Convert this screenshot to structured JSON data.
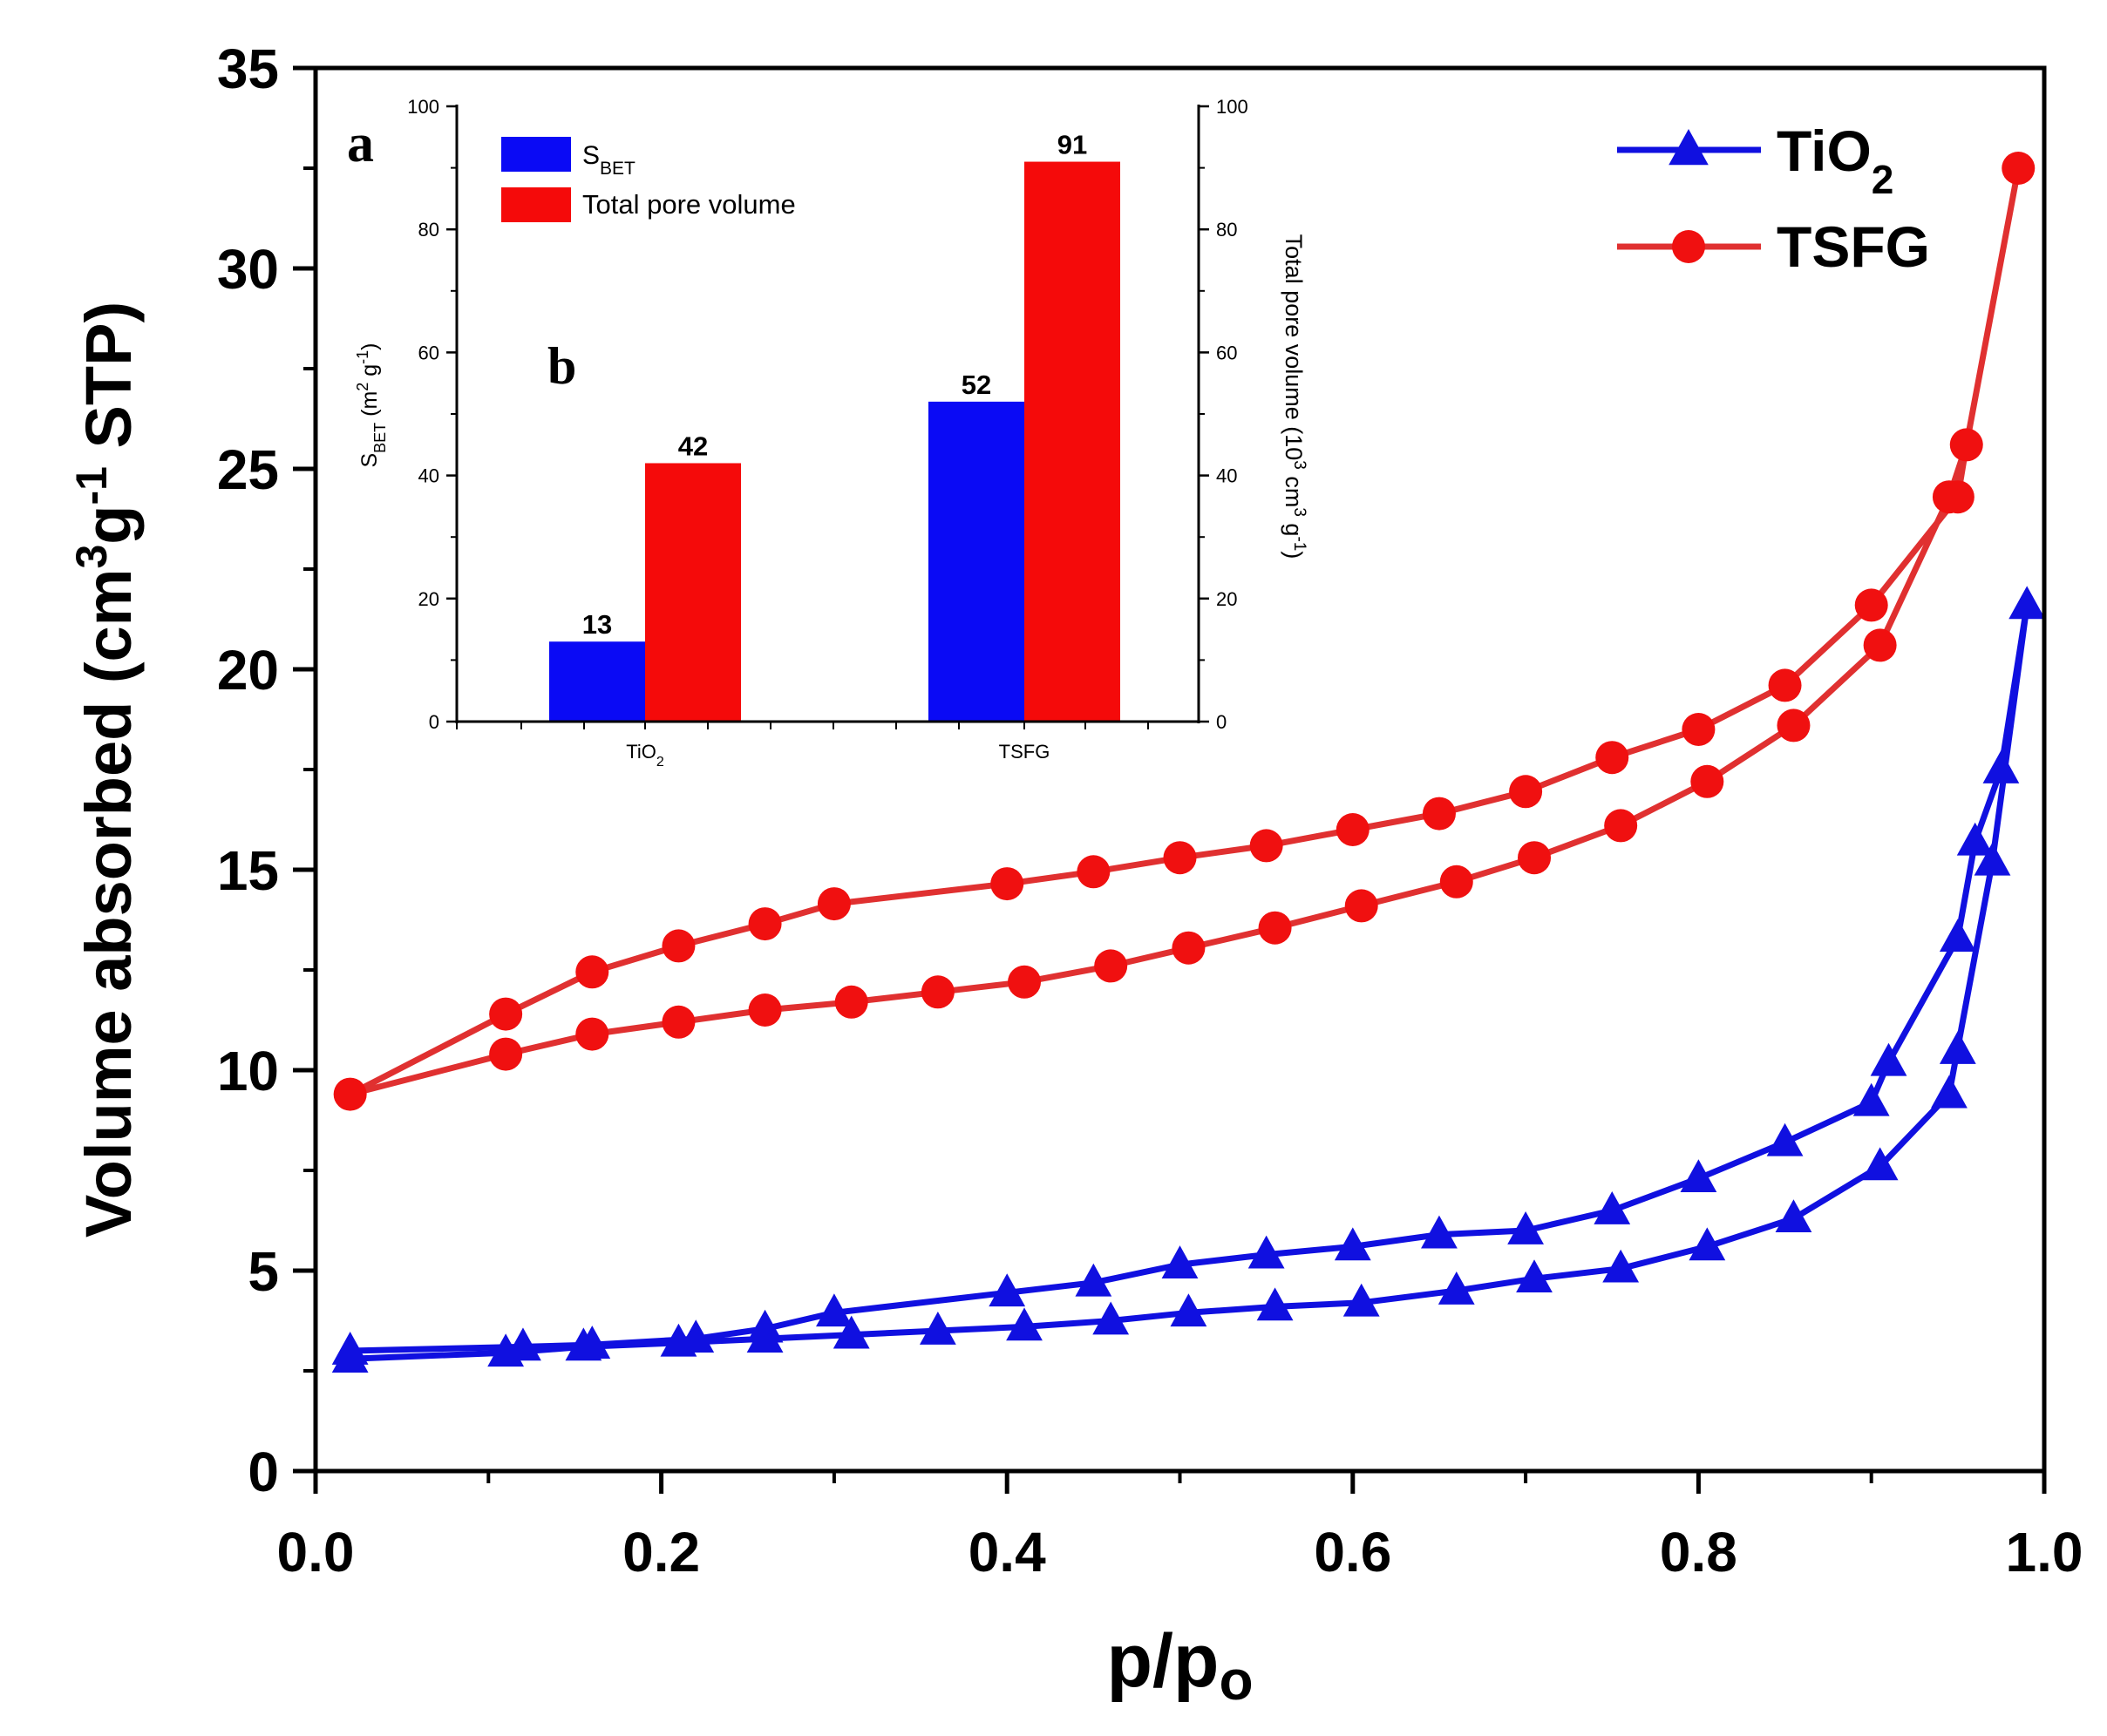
{
  "chart_data": [
    {
      "id": "main",
      "type": "line",
      "title": "",
      "xlabel_main": "p/p",
      "xlabel_sub": "o",
      "ylabel_parts": [
        "Volume absorbed (cm",
        "3",
        "g",
        "-1",
        " STP)"
      ],
      "xlim": [
        0.0,
        1.0
      ],
      "ylim": [
        0,
        35
      ],
      "xticks": [
        0.0,
        0.2,
        0.4,
        0.6,
        0.8,
        1.0
      ],
      "xtick_labels": [
        "0.0",
        "0.2",
        "0.4",
        "0.6",
        "0.8",
        "1.0"
      ],
      "yticks": [
        0,
        5,
        10,
        15,
        20,
        25,
        30,
        35
      ],
      "ytick_labels": [
        "0",
        "5",
        "10",
        "15",
        "20",
        "25",
        "30",
        "35"
      ],
      "panel_label": "a",
      "legend_position": "top-right",
      "series": [
        {
          "name": "TiO",
          "name_sub": "2",
          "marker": "triangle",
          "color": "#1010e0",
          "adsorption": {
            "x": [
              0.02,
              0.11,
              0.155,
              0.21,
              0.26,
              0.31,
              0.36,
              0.41,
              0.46,
              0.505,
              0.555,
              0.605,
              0.66,
              0.705,
              0.755,
              0.805,
              0.855,
              0.905,
              0.945,
              0.97,
              0.99
            ],
            "y": [
              2.8,
              2.95,
              3.1,
              3.2,
              3.3,
              3.4,
              3.5,
              3.6,
              3.75,
              3.95,
              4.1,
              4.2,
              4.5,
              4.8,
              5.05,
              5.6,
              6.3,
              7.6,
              9.4,
              15.2,
              21.6
            ]
          },
          "desorption": {
            "x": [
              0.02,
              0.12,
              0.16,
              0.22,
              0.26,
              0.3,
              0.4,
              0.45,
              0.5,
              0.55,
              0.6,
              0.65,
              0.7,
              0.75,
              0.8,
              0.85,
              0.9,
              0.91,
              0.95,
              0.96,
              0.975
            ],
            "y": [
              3.0,
              3.1,
              3.15,
              3.3,
              3.55,
              3.95,
              4.45,
              4.7,
              5.15,
              5.4,
              5.6,
              5.9,
              6.0,
              6.5,
              7.3,
              8.2,
              9.2,
              10.2,
              13.3,
              15.7,
              17.5
            ]
          },
          "extra_markers": {
            "x": [
              0.95
            ],
            "y": [
              10.5
            ]
          }
        },
        {
          "name": "TSFG",
          "name_sub": "",
          "marker": "circle",
          "color": "#e03030",
          "marker_color": "#f01010",
          "adsorption": {
            "x": [
              0.02,
              0.11,
              0.16,
              0.21,
              0.26,
              0.31,
              0.36,
              0.41,
              0.46,
              0.505,
              0.555,
              0.605,
              0.66,
              0.705,
              0.755,
              0.805,
              0.855,
              0.905,
              0.945,
              0.955,
              0.985
            ],
            "y": [
              9.4,
              10.4,
              10.9,
              11.2,
              11.5,
              11.7,
              11.95,
              12.2,
              12.6,
              13.05,
              13.55,
              14.1,
              14.7,
              15.3,
              16.1,
              17.2,
              18.6,
              20.6,
              24.3,
              25.6,
              32.5
            ]
          },
          "desorption": {
            "x": [
              0.11,
              0.16,
              0.21,
              0.26,
              0.3,
              0.4,
              0.45,
              0.5,
              0.55,
              0.6,
              0.65,
              0.7,
              0.75,
              0.8,
              0.85,
              0.9,
              0.95
            ],
            "y": [
              11.4,
              12.45,
              13.1,
              13.65,
              14.15,
              14.65,
              14.95,
              15.3,
              15.6,
              16.0,
              16.4,
              16.95,
              17.8,
              18.5,
              19.6,
              21.6,
              24.3
            ]
          }
        }
      ]
    },
    {
      "id": "inset",
      "type": "bar",
      "panel_label": "b",
      "categories": [
        "TiO",
        "TSFG"
      ],
      "category_subs": [
        "2",
        ""
      ],
      "ylim": [
        0,
        100
      ],
      "ylim_right": [
        0,
        100
      ],
      "yticks": [
        0,
        20,
        40,
        60,
        80,
        100
      ],
      "ytick_labels": [
        "0",
        "20",
        "40",
        "60",
        "80",
        "100"
      ],
      "ylabel_left_parts": [
        "S",
        "BET",
        " (m",
        "2",
        " g",
        "-1",
        ")"
      ],
      "ylabel_right_parts": [
        "Total pore volume (10",
        "3",
        " cm",
        "3",
        " g",
        "-1",
        ")"
      ],
      "series": [
        {
          "name": "S",
          "name_sub": "BET",
          "color": "#0a0af5",
          "values": [
            13,
            52
          ],
          "labels": [
            "13",
            "52"
          ]
        },
        {
          "name": "Total pore volume",
          "name_sub": "",
          "color": "#f50a0a",
          "values": [
            42,
            91
          ],
          "labels": [
            "42",
            "91"
          ]
        }
      ]
    }
  ]
}
